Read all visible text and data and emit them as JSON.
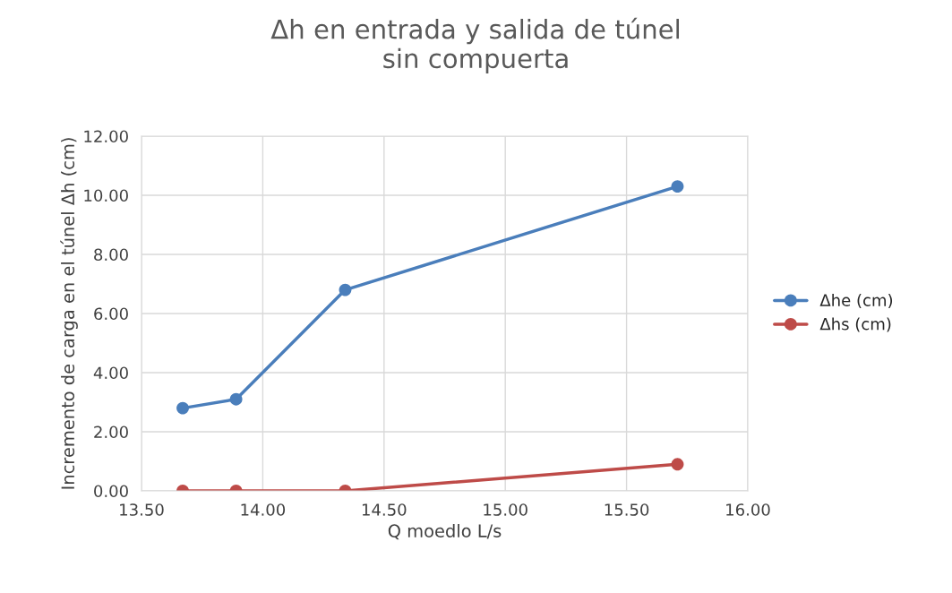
{
  "chart_data": {
    "type": "line",
    "title": "Δh en entrada y salida de túnel\nsin compuerta",
    "xlabel": "Q moedlo L/s",
    "ylabel": "Incremento de carga en el túnel Δh (cm)",
    "x": [
      13.67,
      13.89,
      14.34,
      15.71
    ],
    "series": [
      {
        "name": "Δhe (cm)",
        "color": "#4a7ebb",
        "values": [
          2.8,
          3.1,
          6.8,
          10.3
        ]
      },
      {
        "name": "Δhs (cm)",
        "color": "#be4b48",
        "values": [
          0,
          0,
          0,
          0.9
        ]
      }
    ],
    "xlim": [
      13.5,
      16.0
    ],
    "xticks": [
      {
        "value": 13.5,
        "label": "13.50"
      },
      {
        "value": 14.0,
        "label": "14.00"
      },
      {
        "value": 14.5,
        "label": "14.50"
      },
      {
        "value": 15.0,
        "label": "15.00"
      },
      {
        "value": 15.5,
        "label": "15.50"
      },
      {
        "value": 16.0,
        "label": "16.00"
      }
    ],
    "ylim": [
      0,
      12
    ],
    "yticks": [
      {
        "value": 0,
        "label": "0.00"
      },
      {
        "value": 2,
        "label": "2.00"
      },
      {
        "value": 4,
        "label": "4.00"
      },
      {
        "value": 6,
        "label": "6.00"
      },
      {
        "value": 8,
        "label": "8.00"
      },
      {
        "value": 10,
        "label": "10.00"
      },
      {
        "value": 12,
        "label": "12.00"
      }
    ],
    "grid": true,
    "legend": "right",
    "marker": "circle",
    "line_style": "solid"
  }
}
